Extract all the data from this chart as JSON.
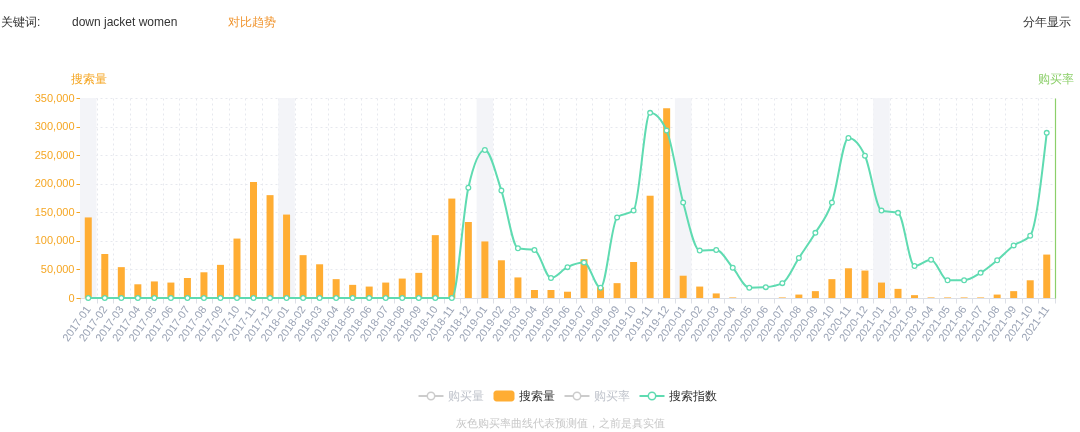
{
  "chart_data": {
    "type": "bar",
    "categories": [
      "2017-01",
      "2017-02",
      "2017-03",
      "2017-04",
      "2017-05",
      "2017-06",
      "2017-07",
      "2017-08",
      "2017-09",
      "2017-10",
      "2017-11",
      "2017-12",
      "2018-01",
      "2018-02",
      "2018-03",
      "2018-04",
      "2018-05",
      "2018-06",
      "2018-07",
      "2018-08",
      "2018-09",
      "2018-10",
      "2018-11",
      "2018-12",
      "2019-01",
      "2019-02",
      "2019-03",
      "2019-04",
      "2019-05",
      "2019-06",
      "2019-07",
      "2019-08",
      "2019-09",
      "2019-10",
      "2019-11",
      "2019-12",
      "2020-01",
      "2020-02",
      "2020-03",
      "2020-04",
      "2020-05",
      "2020-06",
      "2020-07",
      "2020-08",
      "2020-09",
      "2020-10",
      "2020-11",
      "2020-12",
      "2021-01",
      "2021-02",
      "2021-03",
      "2021-04",
      "2021-05",
      "2021-06",
      "2021-07",
      "2021-08",
      "2021-09",
      "2021-10",
      "2021-11"
    ],
    "series": [
      {
        "name": "购买量",
        "type": "line",
        "color": "#cccccc",
        "values": [
          null,
          null,
          null,
          null,
          null,
          null,
          null,
          null,
          null,
          null,
          null,
          null,
          null,
          null,
          null,
          null,
          null,
          null,
          null,
          null,
          null,
          null,
          null,
          null,
          null,
          null,
          null,
          null,
          null,
          null,
          null,
          null,
          null,
          null,
          null,
          null,
          null,
          null,
          null,
          null,
          null,
          null,
          null,
          null,
          null,
          null,
          null,
          null,
          null,
          null,
          null,
          null,
          null,
          null,
          null,
          null,
          null,
          null,
          null
        ]
      },
      {
        "name": "搜索量",
        "color": "#ffad33",
        "values": [
          141000,
          77000,
          54000,
          24000,
          29000,
          27000,
          35000,
          45000,
          58000,
          104000,
          203000,
          180000,
          146000,
          75000,
          59000,
          33000,
          23000,
          20000,
          27000,
          34000,
          44000,
          110000,
          174000,
          133000,
          99000,
          66000,
          36000,
          14000,
          14000,
          11000,
          68000,
          19000,
          26000,
          63000,
          179000,
          332000,
          39000,
          20000,
          8000,
          1000,
          0,
          0,
          1000,
          6000,
          12000,
          33000,
          52000,
          48000,
          27000,
          16000,
          5000,
          1000,
          1000,
          1000,
          1000,
          6000,
          12000,
          31000,
          76000
        ]
      },
      {
        "name": "购买率",
        "type": "line",
        "color": "#cccccc",
        "axis": "y2",
        "values": [
          null,
          null,
          null,
          null,
          null,
          null,
          null,
          null,
          null,
          null,
          null,
          null,
          null,
          null,
          null,
          null,
          null,
          null,
          null,
          null,
          null,
          null,
          null,
          null,
          null,
          null,
          null,
          null,
          null,
          null,
          null,
          null,
          null,
          null,
          null,
          null,
          null,
          null,
          null,
          null,
          null,
          null,
          null,
          null,
          null,
          null,
          null,
          null,
          null,
          null,
          null,
          null,
          null,
          null,
          null,
          null,
          null,
          null,
          null
        ]
      },
      {
        "name": "搜索指数",
        "type": "line",
        "color": "#5fdbb1",
        "line_style": "solid",
        "values": [
          0,
          0,
          0,
          0,
          0,
          0,
          0,
          0,
          0,
          0,
          0,
          0,
          0,
          0,
          0,
          0,
          0,
          0,
          0,
          0,
          0,
          0,
          0,
          193000,
          259000,
          188000,
          87000,
          84000,
          35000,
          54000,
          62000,
          18000,
          141000,
          153000,
          324000,
          293000,
          167000,
          83000,
          84000,
          53000,
          18000,
          19000,
          26000,
          70000,
          114000,
          167000,
          280000,
          249000,
          153000,
          149000,
          56000,
          67000,
          31000,
          31000,
          44000,
          66000,
          92000,
          109000,
          289000
        ]
      }
    ],
    "ylabel": "搜索量",
    "y2label": "购买率",
    "ylim": [
      0,
      350000
    ],
    "yticks": [
      0,
      {
        "value": 50000,
        "label": "50,000"
      },
      {
        "value": 100000,
        "label": "100,000"
      },
      {
        "value": 150000,
        "label": "150,000"
      },
      {
        "value": 200000,
        "label": "200,000"
      },
      {
        "value": 250000,
        "label": "250,000"
      },
      {
        "value": 300000,
        "label": "300,000"
      },
      {
        "value": 350000,
        "label": "350,000"
      }
    ],
    "grid": true,
    "legend": "bottom",
    "marker": "circle",
    "bands": [
      {
        "axis": "x",
        "from": "2017-01",
        "to": "2017-01",
        "color": "#f3f4f8"
      },
      {
        "axis": "x",
        "from": "2018-01",
        "to": "2018-01",
        "color": "#f3f4f8"
      },
      {
        "axis": "x",
        "from": "2019-01",
        "to": "2019-01",
        "color": "#f3f4f8"
      },
      {
        "axis": "x",
        "from": "2020-01",
        "to": "2020-01",
        "color": "#f3f4f8"
      },
      {
        "axis": "x",
        "from": "2021-01",
        "to": "2021-01",
        "color": "#f3f4f8"
      }
    ],
    "annotations": [
      "关键词:",
      "down jacket women",
      "对比趋势",
      "分年显示",
      "灰色购买率曲线代表预测值，之前是真实值"
    ]
  }
}
